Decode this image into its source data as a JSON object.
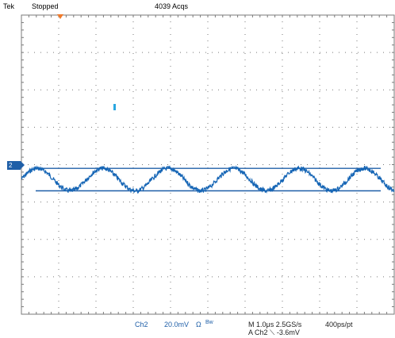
{
  "header": {
    "brand": "Tek",
    "status": "Stopped",
    "acquisitions": "4039 Acqs"
  },
  "channel_marker": "2",
  "footer": {
    "channel": "Ch2",
    "scale": "20.0mV",
    "coupling_symbol": "Ω",
    "bw_label": "Bw",
    "timebase": "M 1.0μs 2.5GS/s",
    "record": "400ps/pt",
    "trigger": "A  Ch2  ⟍  -3.6mV"
  },
  "colors": {
    "grid": "#7a7a7a",
    "trace": "#1565b5",
    "cursor_line": "#1f5fa8",
    "trigger_marker": "#f07a2a",
    "label_blue": "#1f5fa8"
  },
  "waveform": {
    "type": "sine_with_noise",
    "cycles_visible": 5.7,
    "amplitude_divisions": 0.3,
    "center_division_from_top": 4.4,
    "noise_level": 0.12
  },
  "cursors": {
    "upper_division_from_top": 4.1,
    "lower_division_from_top": 4.7
  },
  "grid": {
    "horizontal_divisions": 10,
    "vertical_divisions": 8
  }
}
